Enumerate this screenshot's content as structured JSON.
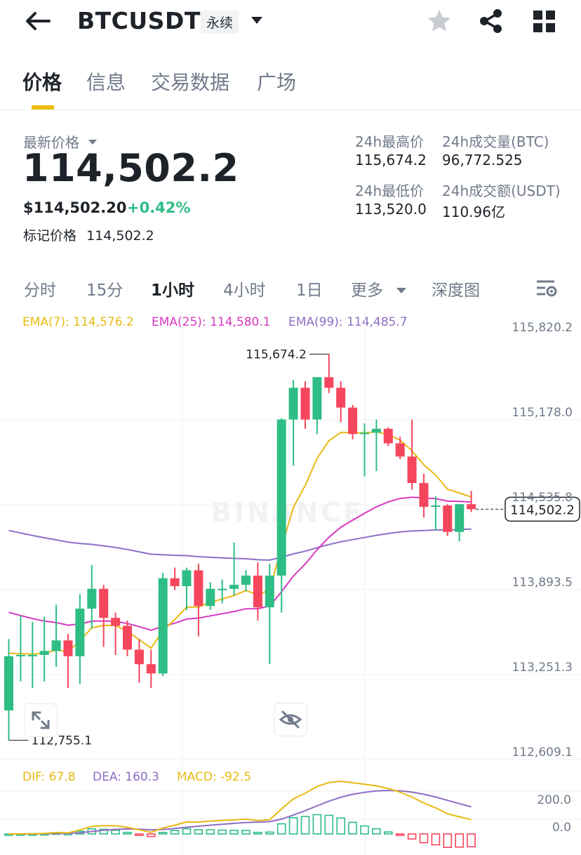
{
  "header": {
    "symbol": "BTCUSDT",
    "contract_badge": "永续"
  },
  "tabs": [
    {
      "label": "价格",
      "active": true
    },
    {
      "label": "信息",
      "active": false
    },
    {
      "label": "交易数据",
      "active": false
    },
    {
      "label": "广场",
      "active": false
    }
  ],
  "price": {
    "latest_label": "最新价格",
    "last_price": "114,502.2",
    "usd_price": "$114,502.20",
    "change_pct": "+0.42%",
    "mark_label": "标记价格",
    "mark_price": "114,502.2"
  },
  "stats": {
    "high_label": "24h最高价",
    "high_value": "115,674.2",
    "vol_btc_label": "24h成交量(BTC)",
    "vol_btc_value": "96,772.525",
    "low_label": "24h最低价",
    "low_value": "113,520.0",
    "vol_usdt_label": "24h成交额(USDT)",
    "vol_usdt_value": "110.96亿"
  },
  "intervals": [
    {
      "label": "分时",
      "active": false
    },
    {
      "label": "15分",
      "active": false
    },
    {
      "label": "1小时",
      "active": true
    },
    {
      "label": "4小时",
      "active": false
    },
    {
      "label": "1日",
      "active": false
    },
    {
      "label": "更多",
      "active": false
    },
    {
      "label": "深度图",
      "active": false
    }
  ],
  "legend": {
    "ema7": "EMA(7): 114,576.2",
    "ema25": "EMA(25): 114,580.1",
    "ema99": "EMA(99): 114,485.7"
  },
  "macd_legend": {
    "dif": "DIF: 67.8",
    "dea": "DEA: 160.3",
    "macd": "MACD: -92.5"
  },
  "watermark": "BINANCE",
  "colors": {
    "up": "#2ebd85",
    "down": "#f6465d",
    "accent": "#f0b90b",
    "ema7": "#e8b913",
    "ema25": "#d838c0",
    "ema99": "#8d6ec4"
  },
  "icons": {
    "back": "arrow-left-icon",
    "favorite": "star-icon",
    "share": "share-icon",
    "apps": "grid-icon",
    "chart_settings": "chart-settings-icon",
    "fullscreen": "expand-icon",
    "hide": "eye-off-icon"
  },
  "chart_data": {
    "type": "candlestick",
    "interval": "1小时",
    "y_axis_ticks": [
      115820.2,
      115178.0,
      114535.8,
      113893.5,
      113251.3,
      112609.1
    ],
    "y_axis_labels": [
      "115,820.2",
      "115,178.0",
      "114,535.8",
      "113,893.5",
      "113,251.3",
      "112,609.1"
    ],
    "ylim": [
      112609.1,
      115820.2
    ],
    "last_price_tag": "114,502.2",
    "last_price": 114502.2,
    "high_marker": {
      "label": "115,674.2",
      "value": 115674.2
    },
    "low_marker": {
      "label": "112,755.1",
      "value": 112755.1
    },
    "candles": [
      {
        "o": 112980,
        "h": 113520,
        "l": 112755,
        "c": 113390
      },
      {
        "o": 113390,
        "h": 113700,
        "l": 113200,
        "c": 113400
      },
      {
        "o": 113400,
        "h": 113650,
        "l": 113150,
        "c": 113400
      },
      {
        "o": 113400,
        "h": 113690,
        "l": 113200,
        "c": 113430
      },
      {
        "o": 113430,
        "h": 113780,
        "l": 113310,
        "c": 113510
      },
      {
        "o": 113510,
        "h": 113560,
        "l": 113150,
        "c": 113390
      },
      {
        "o": 113390,
        "h": 113860,
        "l": 113180,
        "c": 113750
      },
      {
        "o": 113750,
        "h": 114080,
        "l": 113600,
        "c": 113900
      },
      {
        "o": 113900,
        "h": 113930,
        "l": 113460,
        "c": 113680
      },
      {
        "o": 113680,
        "h": 113720,
        "l": 113400,
        "c": 113620
      },
      {
        "o": 113620,
        "h": 113660,
        "l": 113390,
        "c": 113440
      },
      {
        "o": 113440,
        "h": 113520,
        "l": 113190,
        "c": 113330
      },
      {
        "o": 113330,
        "h": 113440,
        "l": 113150,
        "c": 113260
      },
      {
        "o": 113260,
        "h": 114020,
        "l": 113240,
        "c": 113980
      },
      {
        "o": 113980,
        "h": 114060,
        "l": 113890,
        "c": 113920
      },
      {
        "o": 113920,
        "h": 114060,
        "l": 113740,
        "c": 114040
      },
      {
        "o": 114040,
        "h": 114090,
        "l": 113540,
        "c": 113770
      },
      {
        "o": 113770,
        "h": 113950,
        "l": 113740,
        "c": 113900
      },
      {
        "o": 113900,
        "h": 113970,
        "l": 113790,
        "c": 113900
      },
      {
        "o": 113900,
        "h": 114250,
        "l": 113850,
        "c": 113930
      },
      {
        "o": 113930,
        "h": 114040,
        "l": 113880,
        "c": 114000
      },
      {
        "o": 114000,
        "h": 114100,
        "l": 113660,
        "c": 113760
      },
      {
        "o": 113760,
        "h": 114090,
        "l": 113330,
        "c": 114000
      },
      {
        "o": 114000,
        "h": 115190,
        "l": 113720,
        "c": 115180
      },
      {
        "o": 115180,
        "h": 115480,
        "l": 114830,
        "c": 115420
      },
      {
        "o": 115420,
        "h": 115470,
        "l": 115110,
        "c": 115180
      },
      {
        "o": 115180,
        "h": 115500,
        "l": 115070,
        "c": 115500
      },
      {
        "o": 115500,
        "h": 115674.2,
        "l": 115380,
        "c": 115420
      },
      {
        "o": 115420,
        "h": 115470,
        "l": 115160,
        "c": 115270
      },
      {
        "o": 115270,
        "h": 115290,
        "l": 115030,
        "c": 115070
      },
      {
        "o": 115070,
        "h": 115150,
        "l": 114750,
        "c": 115080
      },
      {
        "o": 115080,
        "h": 115180,
        "l": 114790,
        "c": 115110
      },
      {
        "o": 115110,
        "h": 115120,
        "l": 114980,
        "c": 115000
      },
      {
        "o": 115000,
        "h": 115050,
        "l": 114880,
        "c": 114900
      },
      {
        "o": 114900,
        "h": 115180,
        "l": 114650,
        "c": 114700
      },
      {
        "o": 114700,
        "h": 114770,
        "l": 114440,
        "c": 114520
      },
      {
        "o": 114520,
        "h": 114600,
        "l": 114340,
        "c": 114530
      },
      {
        "o": 114530,
        "h": 114540,
        "l": 114300,
        "c": 114330
      },
      {
        "o": 114330,
        "h": 114540,
        "l": 114260,
        "c": 114540
      },
      {
        "o": 114540,
        "h": 114640,
        "l": 114480,
        "c": 114502.2
      }
    ]
  }
}
